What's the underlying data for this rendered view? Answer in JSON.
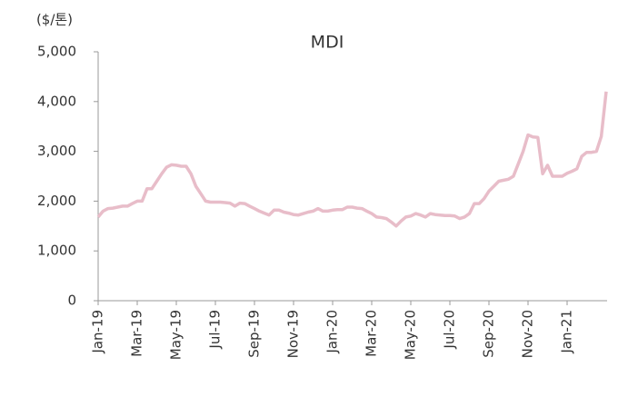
{
  "chart_data": {
    "type": "line",
    "title": "MDI",
    "y_label": "($/톤)",
    "categories": [
      "Jan-19",
      null,
      null,
      null,
      null,
      null,
      null,
      null,
      "Mar-19",
      null,
      null,
      null,
      null,
      null,
      null,
      null,
      "May-19",
      null,
      null,
      null,
      null,
      null,
      null,
      null,
      "Jul-19",
      null,
      null,
      null,
      null,
      null,
      null,
      null,
      "Sep-19",
      null,
      null,
      null,
      null,
      null,
      null,
      null,
      "Nov-19",
      null,
      null,
      null,
      null,
      null,
      null,
      null,
      "Jan-20",
      null,
      null,
      null,
      null,
      null,
      null,
      null,
      "Mar-20",
      null,
      null,
      null,
      null,
      null,
      null,
      null,
      "May-20",
      null,
      null,
      null,
      null,
      null,
      null,
      null,
      "Jul-20",
      null,
      null,
      null,
      null,
      null,
      null,
      null,
      "Sep-20",
      null,
      null,
      null,
      null,
      null,
      null,
      null,
      "Nov-20",
      null,
      null,
      null,
      null,
      null,
      null,
      null,
      "Jan-21",
      null,
      null,
      null,
      null,
      null,
      null,
      null,
      null
    ],
    "series": [
      {
        "name": "MDI",
        "color": "#e8bdc9",
        "values": [
          1680,
          1800,
          1850,
          1860,
          1880,
          1900,
          1900,
          1950,
          2000,
          2000,
          2250,
          2250,
          2400,
          2550,
          2680,
          2730,
          2720,
          2700,
          2700,
          2550,
          2300,
          2150,
          2000,
          1980,
          1980,
          1980,
          1970,
          1960,
          1900,
          1960,
          1950,
          1900,
          1850,
          1800,
          1760,
          1720,
          1820,
          1820,
          1780,
          1760,
          1730,
          1720,
          1750,
          1780,
          1800,
          1850,
          1800,
          1800,
          1820,
          1830,
          1830,
          1880,
          1880,
          1860,
          1850,
          1800,
          1750,
          1680,
          1670,
          1650,
          1580,
          1500,
          1600,
          1680,
          1700,
          1750,
          1720,
          1680,
          1750,
          1730,
          1720,
          1710,
          1710,
          1700,
          1650,
          1680,
          1750,
          1950,
          1950,
          2050,
          2200,
          2300,
          2400,
          2420,
          2440,
          2500,
          2750,
          3000,
          3330,
          3290,
          3280,
          2550,
          2720,
          2500,
          2500,
          2500,
          2560,
          2600,
          2650,
          2900,
          2980,
          2980,
          3000,
          3300,
          4200
        ]
      }
    ],
    "ylim": [
      0,
      5000
    ],
    "yticks": [
      0,
      {
        "value": 1000,
        "label": "1,000"
      },
      {
        "value": 2000,
        "label": "2,000"
      },
      {
        "value": 3000,
        "label": "3,000"
      },
      {
        "value": 4000,
        "label": "4,000"
      },
      {
        "value": 5000,
        "label": "5,000"
      }
    ]
  }
}
